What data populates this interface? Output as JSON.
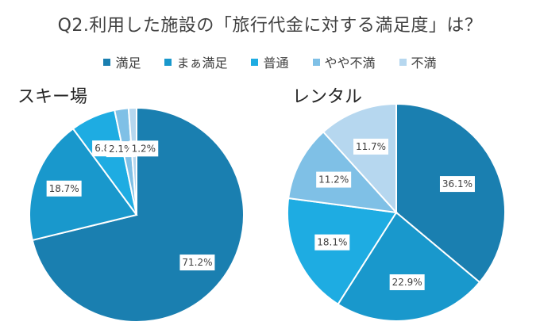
{
  "title": "Q2.利用した施設の「旅行代金に対する満足度」は？",
  "legend": [
    {
      "label": "満足",
      "color": "#1a7fb0"
    },
    {
      "label": "まぁ満足",
      "color": "#1998cc"
    },
    {
      "label": "普通",
      "color": "#1eace2"
    },
    {
      "label": "やや不満",
      "color": "#7fc0e6"
    },
    {
      "label": "不満",
      "color": "#b6d7ef"
    }
  ],
  "chart_data": [
    {
      "type": "pie",
      "title": "スキー場",
      "categories": [
        "満足",
        "まぁ満足",
        "普通",
        "やや不満",
        "不満"
      ],
      "values": [
        71.2,
        18.7,
        6.8,
        2.1,
        1.2
      ],
      "labels": [
        "71.2%",
        "18.7%",
        "6.8%",
        "2.1%",
        "1.2%"
      ],
      "colors": [
        "#1a7fb0",
        "#1998cc",
        "#1eace2",
        "#7fc0e6",
        "#b6d7ef"
      ]
    },
    {
      "type": "pie",
      "title": "レンタル",
      "categories": [
        "満足",
        "まぁ満足",
        "普通",
        "やや不満",
        "不満"
      ],
      "values": [
        36.1,
        22.9,
        18.1,
        11.2,
        11.7
      ],
      "labels": [
        "36.1%",
        "22.9%",
        "18.1%",
        "11.2%",
        "11.7%"
      ],
      "colors": [
        "#1a7fb0",
        "#1998cc",
        "#1eace2",
        "#7fc0e6",
        "#b6d7ef"
      ]
    }
  ]
}
